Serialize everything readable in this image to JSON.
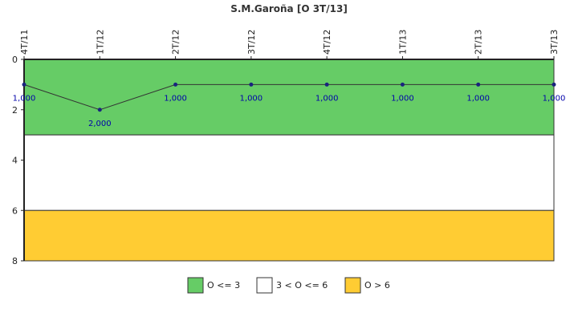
{
  "chart_data": {
    "type": "line",
    "title": "S.M.Garoña [O 3T/13]",
    "xlabel": "",
    "ylabel": "",
    "categories": [
      "4T/11",
      "1T/12",
      "2T/12",
      "3T/12",
      "4T/12",
      "1T/13",
      "2T/13",
      "3T/13"
    ],
    "series": [
      {
        "values": [
          1,
          2,
          1,
          1,
          1,
          1,
          1,
          1
        ],
        "labels": [
          "1,000",
          "2,000",
          "1,000",
          "1,000",
          "1,000",
          "1,000",
          "1,000",
          "1,000"
        ],
        "color": "#1a237e"
      }
    ],
    "ylim": [
      0,
      8
    ],
    "y_reversed": true,
    "yticks": [
      0,
      2,
      4,
      6,
      8
    ],
    "grid": false,
    "bands": [
      {
        "from": 0,
        "to": 3,
        "color": "#66cc66",
        "label": "O <= 3"
      },
      {
        "from": 3,
        "to": 6,
        "color": "#ffffff",
        "label": "3 < O <= 6"
      },
      {
        "from": 6,
        "to": 8,
        "color": "#ffcc33",
        "label": "O > 6"
      }
    ],
    "legend_position": "bottom"
  }
}
